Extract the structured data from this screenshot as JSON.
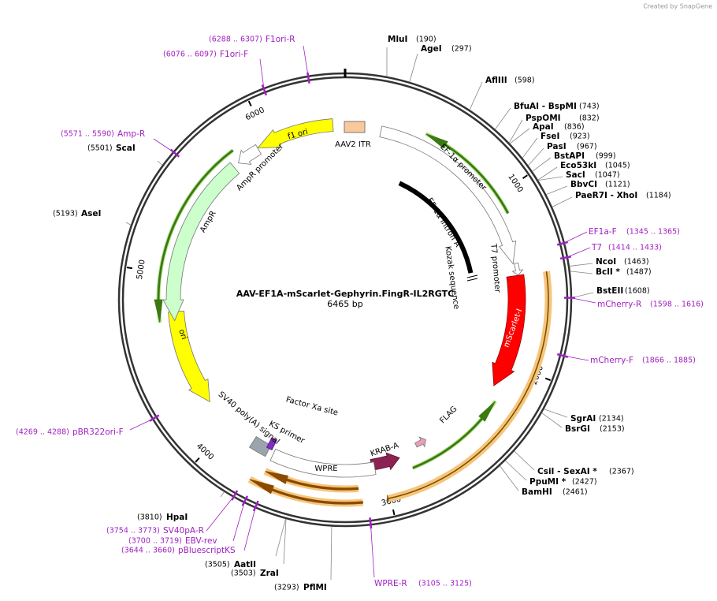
{
  "header": {
    "credit": "Created by SnapGene"
  },
  "map": {
    "title": "AAV-EF1A-mScarlet-Gephyrin.FingR-IL2RGTC",
    "length": "6465 bp"
  },
  "ticks": [
    "1000",
    "2000",
    "3000",
    "4000",
    "5000",
    "6000"
  ],
  "enzymes": [
    {
      "name": "MluI",
      "position": "(190)"
    },
    {
      "name": "AgeI",
      "position": "(297)"
    },
    {
      "name": "AflIII",
      "position": "(598)"
    },
    {
      "name": "BfuAI  - BspMI",
      "position": "(743)"
    },
    {
      "name": "PspOMI",
      "position": "(832)"
    },
    {
      "name": "ApaI",
      "position": "(836)"
    },
    {
      "name": "FseI",
      "position": "(923)"
    },
    {
      "name": "PasI",
      "position": "(967)"
    },
    {
      "name": "BstAPI",
      "position": "(999)"
    },
    {
      "name": "Eco53kI",
      "position": "(1045)"
    },
    {
      "name": "SacI",
      "position": "(1047)"
    },
    {
      "name": "BbvCI",
      "position": "(1121)"
    },
    {
      "name": "PaeR7I  - XhoI",
      "position": "(1184)"
    },
    {
      "name": "NcoI",
      "position": "(1463)"
    },
    {
      "name": "BclI *",
      "position": "(1487)"
    },
    {
      "name": "BstEII",
      "position": "(1608)"
    },
    {
      "name": "SgrAI",
      "position": "(2134)"
    },
    {
      "name": "BsrGI",
      "position": "(2153)"
    },
    {
      "name": "CsiI  - SexAI *",
      "position": "(2367)"
    },
    {
      "name": "PpuMI *",
      "position": "(2427)"
    },
    {
      "name": "BamHI",
      "position": "(2461)"
    },
    {
      "name": "PflMI",
      "position": "(3293)"
    },
    {
      "name": "ZraI",
      "position": "(3503)"
    },
    {
      "name": "AatII",
      "position": "(3505)"
    },
    {
      "name": "HpaI",
      "position": "(3810)"
    },
    {
      "name": "AseI",
      "position": "(5193)"
    },
    {
      "name": "ScaI",
      "position": "(5501)"
    }
  ],
  "primers": [
    {
      "name": "F1ori-R",
      "range": "(6288 .. 6307)"
    },
    {
      "name": "F1ori-F",
      "range": "(6076 .. 6097)"
    },
    {
      "name": "Amp-R",
      "range": "(5571 .. 5590)"
    },
    {
      "name": "EF1a-F",
      "range": "(1345 .. 1365)"
    },
    {
      "name": "T7",
      "range": "(1414 .. 1433)"
    },
    {
      "name": "mCherry-R",
      "range": "(1598 .. 1616)"
    },
    {
      "name": "mCherry-F",
      "range": "(1866 .. 1885)"
    },
    {
      "name": "pBR322ori-F",
      "range": "(4269 .. 4288)"
    },
    {
      "name": "SV40pA-R",
      "range": "(3754 .. 3773)"
    },
    {
      "name": "EBV-rev",
      "range": "(3700 .. 3719)"
    },
    {
      "name": "pBluescriptKS",
      "range": "(3644 .. 3660)"
    },
    {
      "name": "WPRE-R",
      "range": "(3105 .. 3125)"
    }
  ],
  "features": [
    "f1 ori",
    "AAV2 ITR",
    "EF-1α promoter",
    "EF-1α intron A",
    "Kozak sequence",
    "T7 promoter",
    "mScarlet-I",
    "AmpR promoter",
    "AmpR",
    "ori",
    "SV40 poly(A) signal",
    "KS primer",
    "Factor Xa site",
    "WPRE",
    "KRAB-A",
    "FLAG"
  ]
}
